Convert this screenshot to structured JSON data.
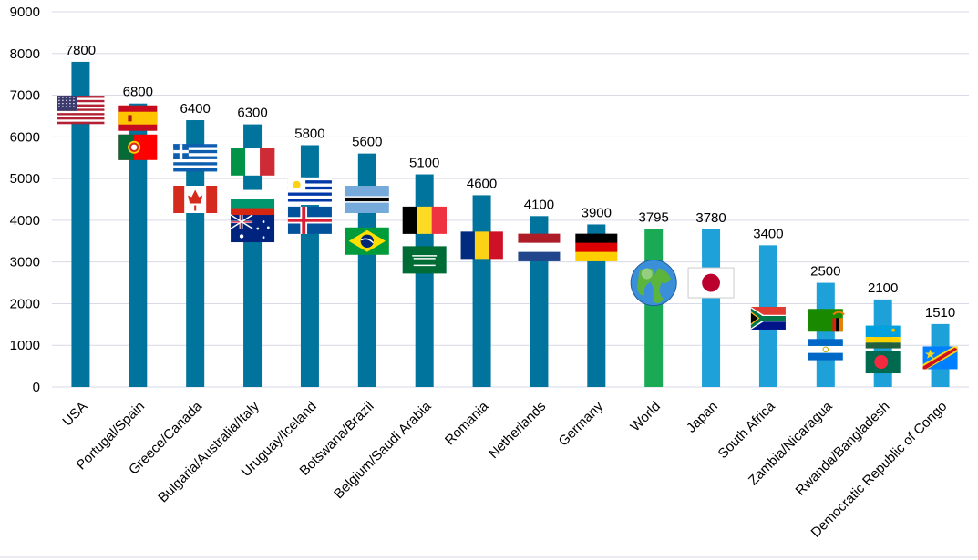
{
  "chart_data": {
    "type": "bar",
    "title": "",
    "xlabel": "",
    "ylabel": "",
    "ylim": [
      0,
      9000
    ],
    "yticks": [
      0,
      1000,
      2000,
      3000,
      4000,
      5000,
      6000,
      7000,
      8000,
      9000
    ],
    "grid": true,
    "categories": [
      "USA",
      "Portugal/Spain",
      "Greece/Canada",
      "Bulgaria/Australia/Italy",
      "Uruguay/Iceland",
      "Botswana/Brazil",
      "Belgium/Saudi Arabia",
      "Romania",
      "Netherlands",
      "Germany",
      "World",
      "Japan",
      "South Africa",
      "Zambia/Nicaragua",
      "Rwanda/Bangladesh",
      "Democratic Republic of Congo"
    ],
    "values": [
      7800,
      6800,
      6400,
      6300,
      5800,
      5600,
      5100,
      4600,
      4100,
      3900,
      3795,
      3780,
      3400,
      2500,
      2100,
      1510
    ],
    "value_labels": [
      "7800",
      "6800",
      "6400",
      "6300",
      "5800",
      "5600",
      "5100",
      "4600",
      "4100",
      "3900",
      "3795",
      "3780",
      "3400",
      "2500",
      "2100",
      "1510"
    ],
    "bar_colors": [
      "#00749c",
      "#00749c",
      "#00749c",
      "#00749c",
      "#00749c",
      "#00749c",
      "#00749c",
      "#00749c",
      "#00749c",
      "#00749c",
      "#1aaa55",
      "#1ea0d8",
      "#1ea0d8",
      "#1ea0d8",
      "#1ea0d8",
      "#1ea0d8"
    ],
    "flags": [
      [
        "usa-flag"
      ],
      [
        "spain-flag",
        "portugal-flag"
      ],
      [
        "greece-flag",
        "canada-flag"
      ],
      [
        "italy-flag",
        "bulgaria-flag",
        "australia-flag"
      ],
      [
        "uruguay-flag",
        "iceland-flag"
      ],
      [
        "botswana-flag",
        "brazil-flag"
      ],
      [
        "belgium-flag",
        "saudi-arabia-flag"
      ],
      [
        "romania-flag"
      ],
      [
        "netherlands-flag"
      ],
      [
        "germany-flag"
      ],
      [
        "globe-icon"
      ],
      [
        "japan-flag"
      ],
      [
        "south-africa-flag"
      ],
      [
        "zambia-flag",
        "nicaragua-flag"
      ],
      [
        "rwanda-flag",
        "bangladesh-flag"
      ],
      [
        "dr-congo-flag"
      ]
    ]
  }
}
